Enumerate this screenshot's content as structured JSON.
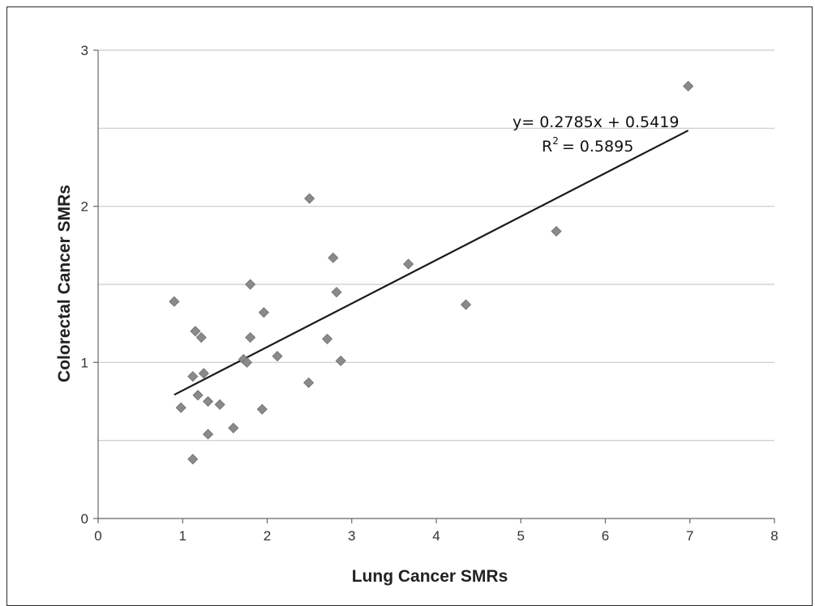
{
  "chart_data": {
    "type": "scatter",
    "title": "",
    "xlabel": "Lung Cancer SMRs",
    "ylabel": "Colorectal Cancer SMRs",
    "xlim": [
      0,
      8
    ],
    "ylim": [
      0,
      3
    ],
    "x_ticks": [
      "0",
      "1",
      "2",
      "3",
      "4",
      "5",
      "6",
      "7",
      "8"
    ],
    "y_ticks": [
      "0",
      "1",
      "2",
      "3"
    ],
    "grid": "horizontal",
    "legend": "none",
    "marker": "diamond",
    "marker_color": "#8a8a8a",
    "points": [
      {
        "x": 0.9,
        "y": 1.39
      },
      {
        "x": 0.98,
        "y": 0.71
      },
      {
        "x": 1.12,
        "y": 0.91
      },
      {
        "x": 1.12,
        "y": 0.38
      },
      {
        "x": 1.15,
        "y": 1.2
      },
      {
        "x": 1.18,
        "y": 0.79
      },
      {
        "x": 1.22,
        "y": 1.16
      },
      {
        "x": 1.25,
        "y": 0.93
      },
      {
        "x": 1.3,
        "y": 0.75
      },
      {
        "x": 1.3,
        "y": 0.54
      },
      {
        "x": 1.44,
        "y": 0.73
      },
      {
        "x": 1.6,
        "y": 0.58
      },
      {
        "x": 1.72,
        "y": 1.02
      },
      {
        "x": 1.76,
        "y": 1.0
      },
      {
        "x": 1.8,
        "y": 1.5
      },
      {
        "x": 1.8,
        "y": 1.16
      },
      {
        "x": 1.94,
        "y": 0.7
      },
      {
        "x": 1.96,
        "y": 1.32
      },
      {
        "x": 2.12,
        "y": 1.04
      },
      {
        "x": 2.49,
        "y": 0.87
      },
      {
        "x": 2.5,
        "y": 2.05
      },
      {
        "x": 2.71,
        "y": 1.15
      },
      {
        "x": 2.78,
        "y": 1.67
      },
      {
        "x": 2.82,
        "y": 1.45
      },
      {
        "x": 2.87,
        "y": 1.01
      },
      {
        "x": 3.67,
        "y": 1.63
      },
      {
        "x": 4.35,
        "y": 1.37
      },
      {
        "x": 5.42,
        "y": 1.84
      },
      {
        "x": 6.98,
        "y": 2.77
      }
    ],
    "trendline": {
      "slope": 0.2785,
      "intercept": 0.5419,
      "x_start": 0.9,
      "x_end": 6.98,
      "color": "#1a1a1a"
    },
    "annotations": {
      "equation_prefix": "y= 0.2785x + 0.5419",
      "r2_base": "R",
      "r2_exp": "2",
      "r2_value": "= 0.5895"
    }
  }
}
